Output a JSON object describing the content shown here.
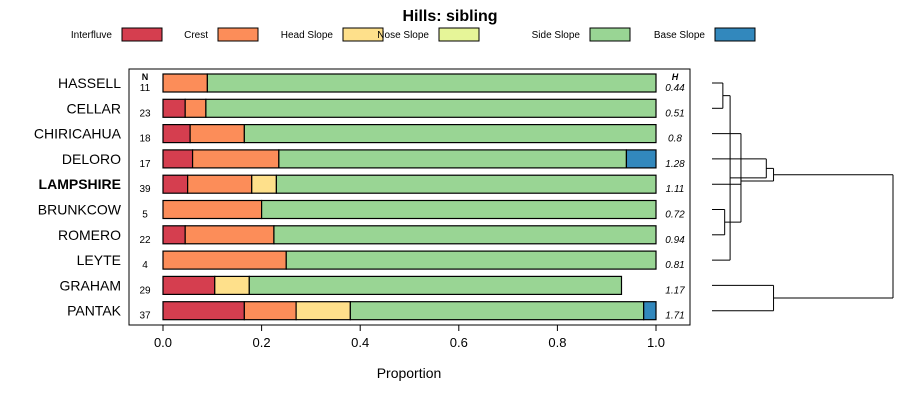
{
  "chart_data": {
    "type": "bar",
    "orientation": "horizontal",
    "stacked": true,
    "title": "Hills: sibling",
    "xlabel": "Proportion",
    "xlim": [
      0,
      1
    ],
    "x_ticks": [
      "0.0",
      "0.2",
      "0.4",
      "0.6",
      "0.8",
      "1.0"
    ],
    "n_header": "N",
    "h_header": "H",
    "legend": [
      {
        "name": "Interfluve",
        "color": "#d53e4f"
      },
      {
        "name": "Crest",
        "color": "#fc8d59"
      },
      {
        "name": "Head Slope",
        "color": "#fee08b"
      },
      {
        "name": "Nose Slope",
        "color": "#e6f598"
      },
      {
        "name": "Side Slope",
        "color": "#99d594"
      },
      {
        "name": "Base Slope",
        "color": "#3288bd"
      }
    ],
    "rows": [
      {
        "name": "HASSELL",
        "n": "11",
        "h": "0.44",
        "bold": false,
        "values": [
          0,
          0.09,
          0,
          0,
          0.91,
          0
        ]
      },
      {
        "name": "CELLAR",
        "n": "23",
        "h": "0.51",
        "bold": false,
        "values": [
          0.045,
          0.042,
          0,
          0,
          0.913,
          0
        ]
      },
      {
        "name": "CHIRICAHUA",
        "n": "18",
        "h": "0.8",
        "bold": false,
        "values": [
          0.055,
          0.11,
          0,
          0,
          0.835,
          0
        ]
      },
      {
        "name": "DELORO",
        "n": "17",
        "h": "1.28",
        "bold": false,
        "values": [
          0.06,
          0.175,
          0,
          0,
          0.705,
          0.06
        ]
      },
      {
        "name": "LAMPSHIRE",
        "n": "39",
        "h": "1.11",
        "bold": true,
        "values": [
          0.05,
          0.13,
          0.05,
          0,
          0.77,
          0
        ]
      },
      {
        "name": "BRUNKCOW",
        "n": "5",
        "h": "0.72",
        "bold": false,
        "values": [
          0,
          0.2,
          0,
          0,
          0.8,
          0
        ]
      },
      {
        "name": "ROMERO",
        "n": "22",
        "h": "0.94",
        "bold": false,
        "values": [
          0.045,
          0.18,
          0,
          0,
          0.775,
          0
        ]
      },
      {
        "name": "LEYTE",
        "n": "4",
        "h": "0.81",
        "bold": false,
        "values": [
          0,
          0.25,
          0,
          0,
          0.75,
          0
        ]
      },
      {
        "name": "GRAHAM",
        "n": "29",
        "h": "1.17",
        "bold": false,
        "values": [
          0.105,
          0,
          0.07,
          0,
          0.755,
          0
        ]
      },
      {
        "name": "PANTAK",
        "n": "37",
        "h": "1.71",
        "bold": false,
        "values": [
          0.165,
          0.105,
          0.11,
          0,
          0.595,
          0.025
        ]
      }
    ],
    "dendrogram": {
      "description": "hierarchical clustering of rows",
      "merges": [
        [
          0,
          1
        ],
        [
          5,
          6
        ],
        [
          10,
          7
        ],
        [
          11,
          2
        ],
        [
          13,
          3
        ],
        [
          12,
          4
        ],
        [
          14,
          15
        ],
        [
          8,
          9
        ],
        [
          16,
          17
        ]
      ],
      "heights": [
        0.06,
        0.07,
        0.1,
        0.16,
        0.3,
        0.16,
        0.34,
        0.34,
        1.0
      ]
    }
  }
}
